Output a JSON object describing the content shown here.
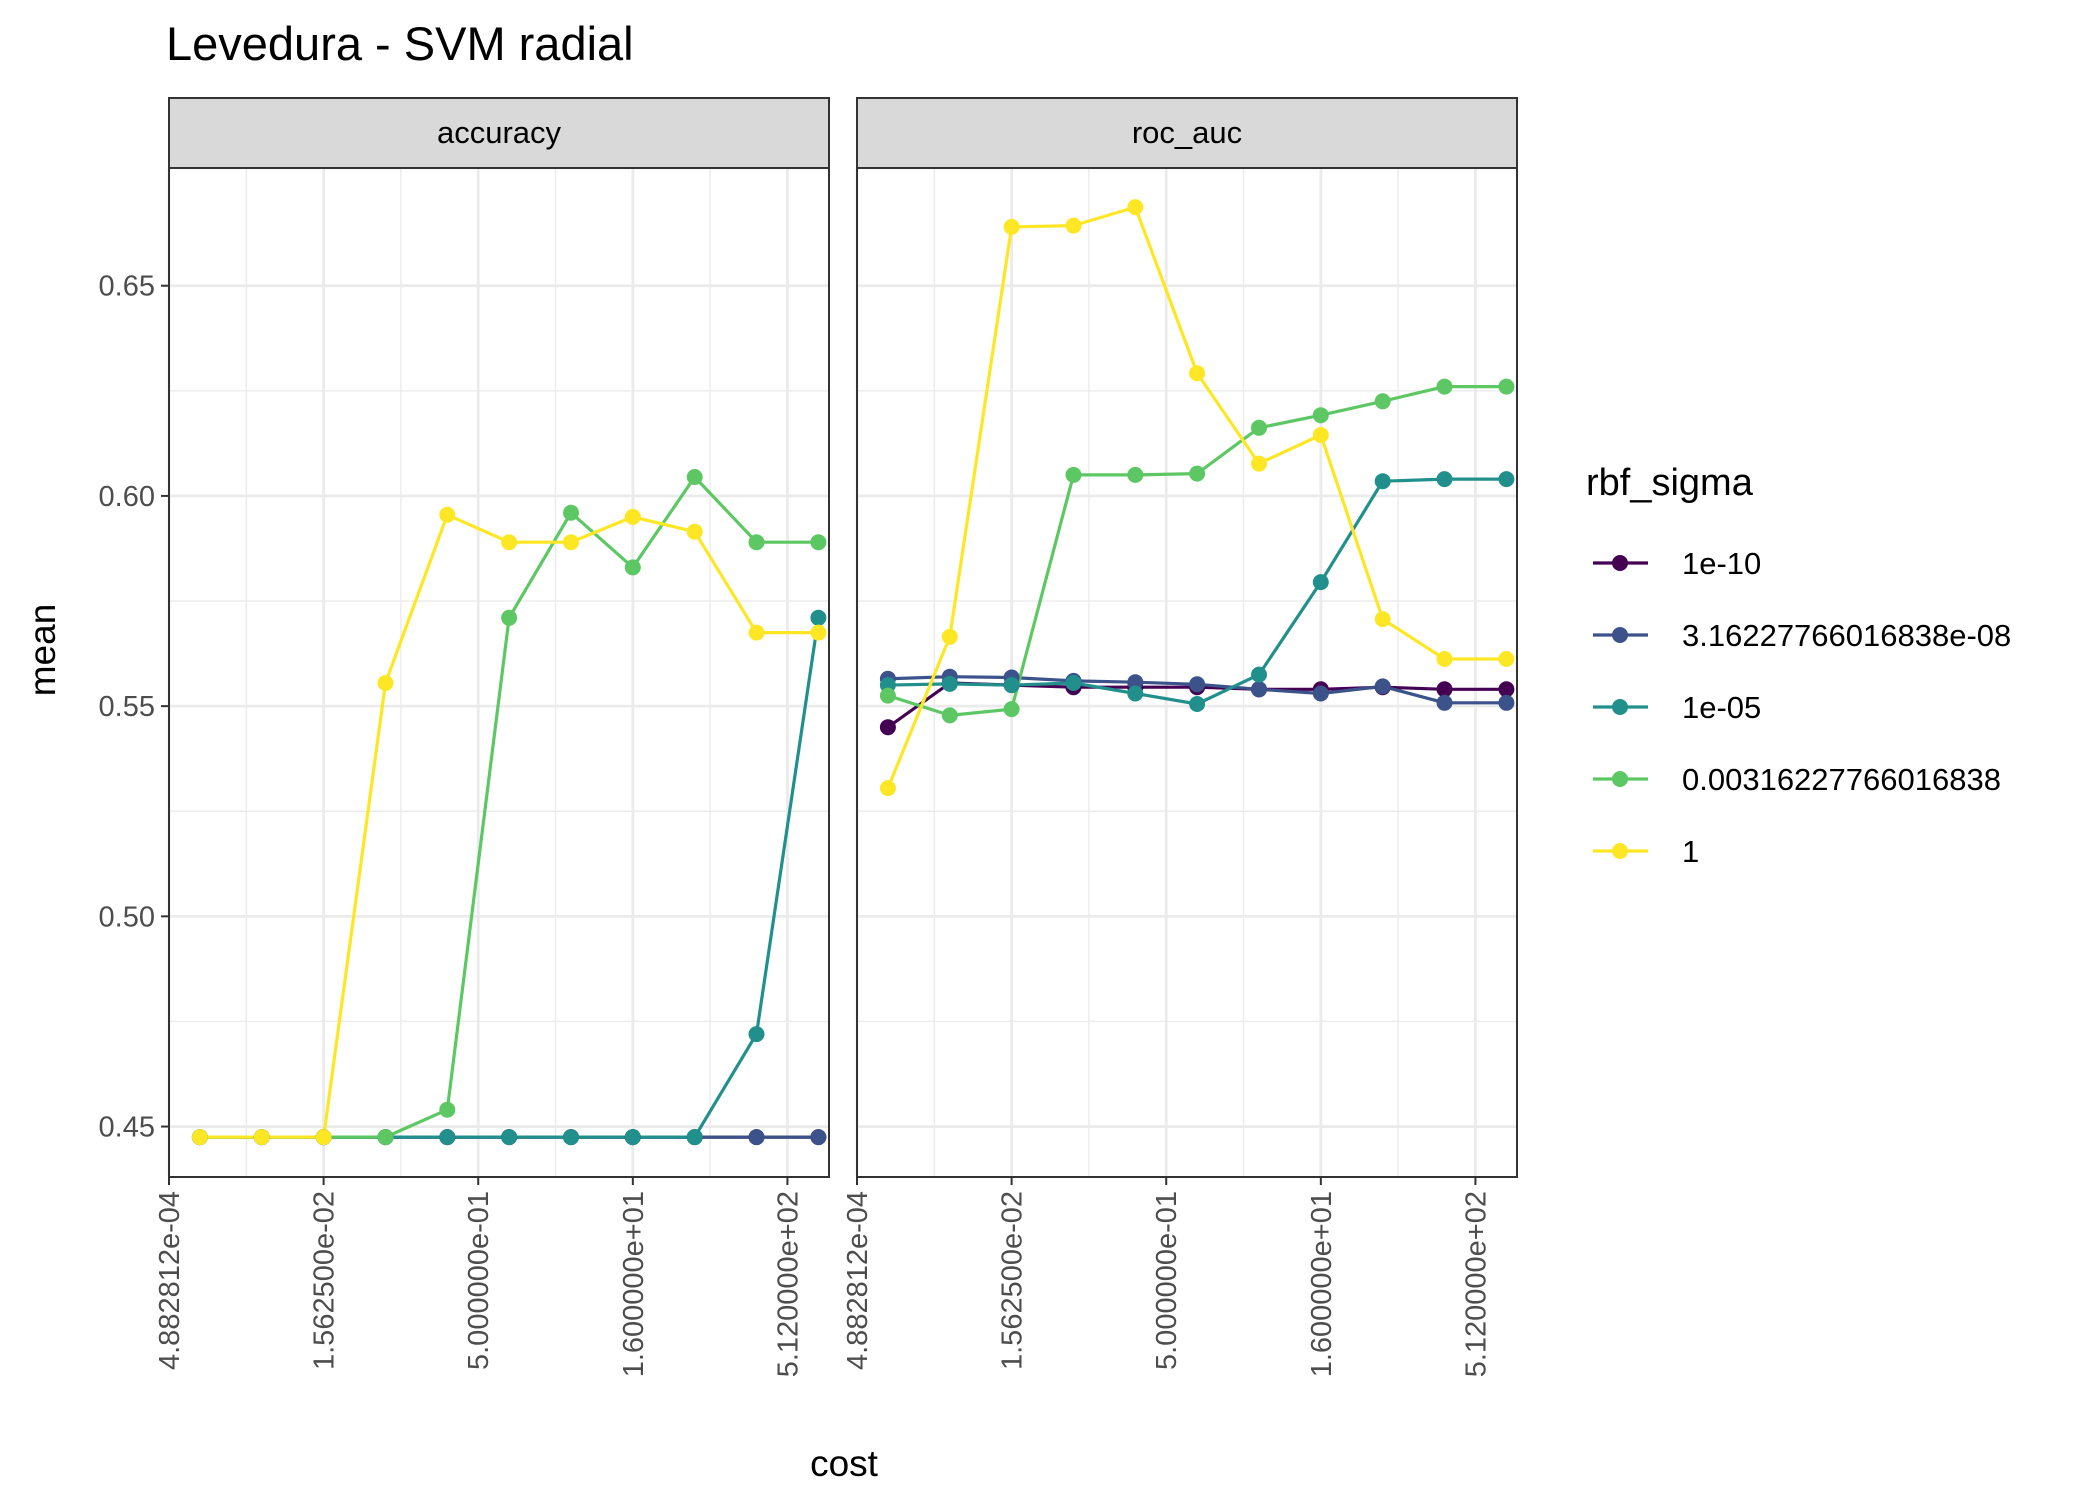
{
  "chart_data": {
    "type": "line",
    "title": "Levedura - SVM radial",
    "xlabel": "cost",
    "ylabel": "mean",
    "x_scale": "log2",
    "x": [
      0.0009765625,
      0.00390625,
      0.015625,
      0.0625,
      0.25,
      1,
      4,
      16,
      64,
      256,
      1024
    ],
    "x_tick_values": [
      0.00048828125,
      0.015625,
      0.5,
      16,
      512
    ],
    "x_tick_labels": [
      "4.882812e-04",
      "1.562500e-02",
      "5.000000e-01",
      "1.600000e+01",
      "5.120000e+02"
    ],
    "xlim": [
      0.00048828125,
      1300
    ],
    "ylim": [
      0.438,
      0.678
    ],
    "y_ticks": [
      0.45,
      0.5,
      0.55,
      0.6,
      0.65
    ],
    "y_tick_labels": [
      "0.45",
      "0.50",
      "0.55",
      "0.60",
      "0.65"
    ],
    "grid": true,
    "legend": {
      "title": "rbf_sigma",
      "position": "right"
    },
    "series": [
      {
        "name": "1e-10",
        "color": "#440154"
      },
      {
        "name": "3.16227766016838e-08",
        "color": "#3B528B"
      },
      {
        "name": "1e-05",
        "color": "#21908C"
      },
      {
        "name": "0.00316227766016838",
        "color": "#5DC863"
      },
      {
        "name": "1",
        "color": "#FDE725"
      }
    ],
    "panels": [
      {
        "strip": "accuracy",
        "values": [
          [
            0.4475,
            0.4475,
            0.4475,
            0.4475,
            0.4475,
            0.4475,
            0.4475,
            0.4475,
            0.4475,
            0.4475,
            0.4475
          ],
          [
            0.4475,
            0.4475,
            0.4475,
            0.4475,
            0.4475,
            0.4475,
            0.4475,
            0.4475,
            0.4475,
            0.4475,
            0.4475
          ],
          [
            0.4475,
            0.4475,
            0.4475,
            0.4475,
            0.4475,
            0.4475,
            0.4475,
            0.4475,
            0.4475,
            0.472,
            0.571
          ],
          [
            0.4475,
            0.4475,
            0.4475,
            0.4475,
            0.454,
            0.571,
            0.596,
            0.583,
            0.6045,
            0.589,
            0.589
          ],
          [
            0.4475,
            0.4475,
            0.4475,
            0.5555,
            0.5955,
            0.589,
            0.589,
            0.595,
            0.5915,
            0.5675,
            0.5675
          ]
        ]
      },
      {
        "strip": "roc_auc",
        "values": [
          [
            0.545,
            0.5555,
            0.555,
            0.5545,
            0.5545,
            0.5545,
            0.554,
            0.554,
            0.5545,
            0.554,
            0.554
          ],
          [
            0.5565,
            0.557,
            0.5568,
            0.556,
            0.5557,
            0.5552,
            0.554,
            0.553,
            0.5547,
            0.5508,
            0.5508
          ],
          [
            0.555,
            0.5553,
            0.555,
            0.5555,
            0.553,
            0.5505,
            0.5575,
            0.5795,
            0.6035,
            0.604,
            0.604
          ],
          [
            0.5525,
            0.5478,
            0.5493,
            0.605,
            0.605,
            0.6053,
            0.6162,
            0.6192,
            0.6225,
            0.626,
            0.626
          ],
          [
            0.5305,
            0.5665,
            0.664,
            0.6643,
            0.6687,
            0.6292,
            0.6077,
            0.6145,
            0.5707,
            0.5612,
            0.5612
          ]
        ]
      }
    ]
  }
}
